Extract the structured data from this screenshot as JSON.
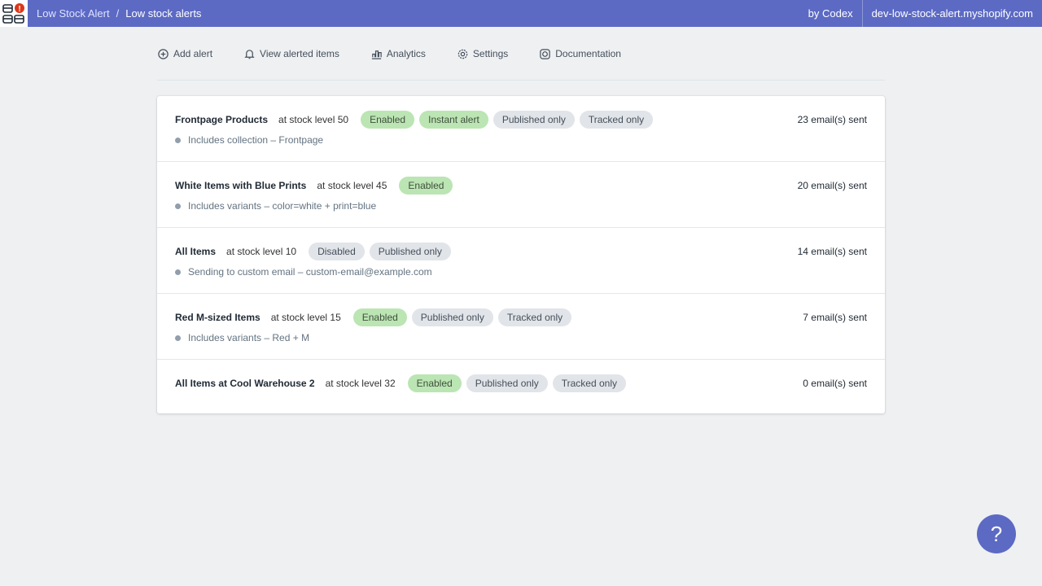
{
  "header": {
    "app": "Low Stock Alert",
    "separator": "/",
    "page": "Low stock alerts",
    "by": "by Codex",
    "shop": "dev-low-stock-alert.myshopify.com",
    "accent": "#5c6ac4"
  },
  "nav": [
    {
      "label": "Add alert",
      "icon": "plus-circle-icon"
    },
    {
      "label": "View alerted items",
      "icon": "bell-icon"
    },
    {
      "label": "Analytics",
      "icon": "bar-chart-icon"
    },
    {
      "label": "Settings",
      "icon": "gear-icon"
    },
    {
      "label": "Documentation",
      "icon": "lifebuoy-icon"
    }
  ],
  "alerts": [
    {
      "name": "Frontpage Products",
      "level": "at stock level 50",
      "badges": [
        {
          "t": "Enabled",
          "g": true
        },
        {
          "t": "Instant alert",
          "g": true
        },
        {
          "t": "Published only"
        },
        {
          "t": "Tracked only"
        }
      ],
      "detail": "Includes collection –  Frontpage",
      "sent": "23 email(s) sent"
    },
    {
      "name": "White Items with Blue Prints",
      "level": "at stock level 45",
      "badges": [
        {
          "t": "Enabled",
          "g": true
        }
      ],
      "detail": "Includes variants –  color=white + print=blue",
      "sent": "20 email(s) sent"
    },
    {
      "name": "All Items",
      "level": "at stock level 10",
      "badges": [
        {
          "t": "Disabled"
        },
        {
          "t": "Published only"
        }
      ],
      "detail": "Sending to custom email –  custom-email@example.com",
      "sent": "14 email(s) sent"
    },
    {
      "name": "Red M-sized Items",
      "level": "at stock level 15",
      "badges": [
        {
          "t": "Enabled",
          "g": true
        },
        {
          "t": "Published only"
        },
        {
          "t": "Tracked only"
        }
      ],
      "detail": "Includes variants –  Red + M",
      "sent": "7 email(s) sent"
    },
    {
      "name": "All Items at Cool Warehouse 2",
      "level": "at stock level 32",
      "badges": [
        {
          "t": "Enabled",
          "g": true
        },
        {
          "t": "Published only"
        },
        {
          "t": "Tracked only"
        }
      ],
      "detail": null,
      "sent": "0 email(s) sent"
    }
  ],
  "help": "?"
}
